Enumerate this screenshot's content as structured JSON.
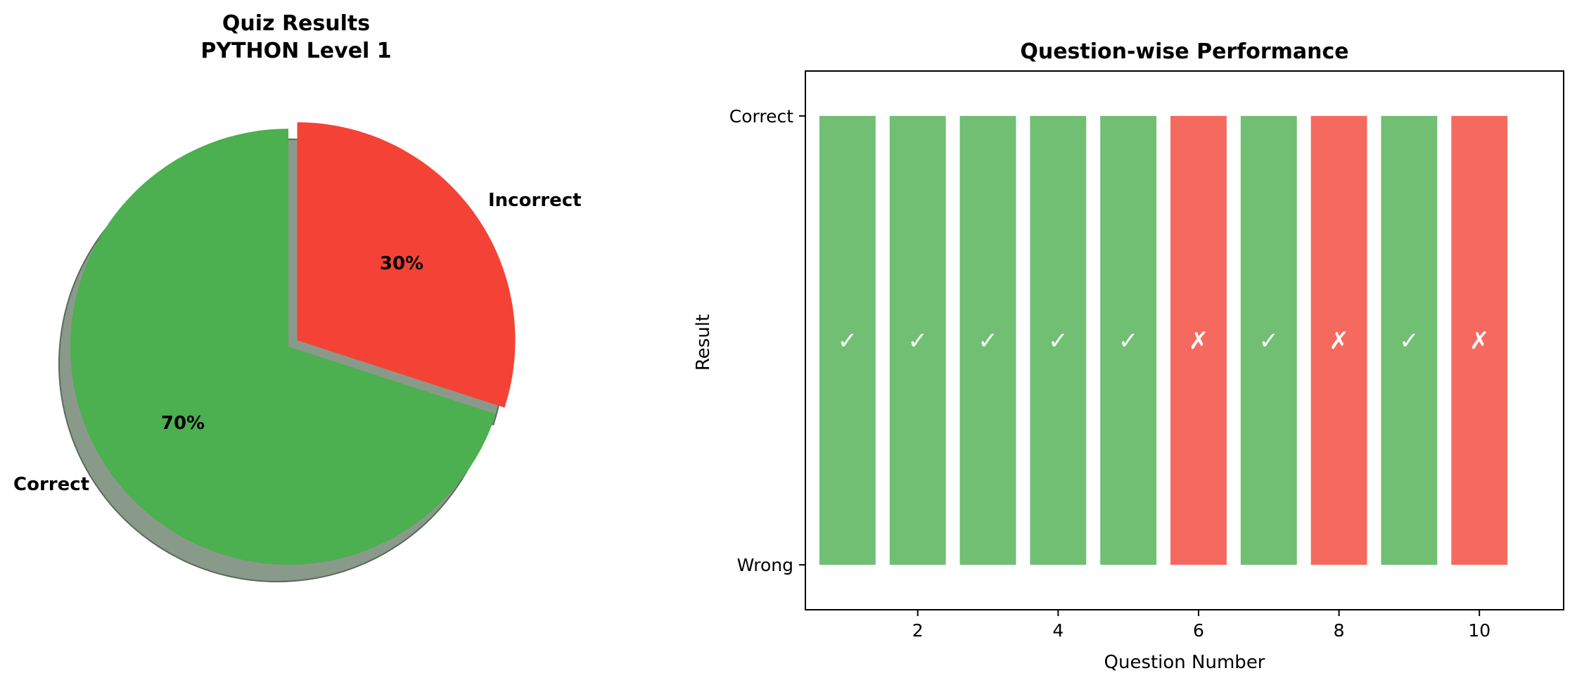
{
  "colors": {
    "correct": "#4caf50",
    "incorrect": "#f44336",
    "shadow": "#8a9a8a",
    "shadow_edge": "#5a6a5a",
    "axis": "#000000"
  },
  "chart_data": [
    {
      "type": "pie",
      "title": "Quiz Results\nPYTHON Level 1",
      "title_lines": [
        "Quiz Results",
        "PYTHON Level 1"
      ],
      "labels": [
        "Correct",
        "Incorrect"
      ],
      "values": [
        70,
        30
      ],
      "pct_labels": [
        "70%",
        "30%"
      ],
      "explode": [
        0,
        0.05
      ],
      "shadow": true,
      "start_angle_deg": 90
    },
    {
      "type": "bar",
      "title": "Question-wise Performance",
      "xlabel": "Question Number",
      "ylabel": "Result",
      "x": [
        1,
        2,
        3,
        4,
        5,
        6,
        7,
        8,
        9,
        10
      ],
      "results": [
        "Correct",
        "Correct",
        "Correct",
        "Correct",
        "Correct",
        "Wrong",
        "Correct",
        "Wrong",
        "Correct",
        "Wrong"
      ],
      "values": [
        1,
        1,
        1,
        1,
        1,
        1,
        1,
        1,
        1,
        1
      ],
      "symbols": [
        "✓",
        "✓",
        "✓",
        "✓",
        "✓",
        "✗",
        "✓",
        "✗",
        "✓",
        "✗"
      ],
      "xticks": [
        "2",
        "4",
        "6",
        "8",
        "10"
      ],
      "yticks": [
        "Wrong",
        "Correct"
      ],
      "xlim": [
        0.4,
        11.2
      ],
      "ylim": [
        -0.1,
        1.1
      ]
    }
  ]
}
